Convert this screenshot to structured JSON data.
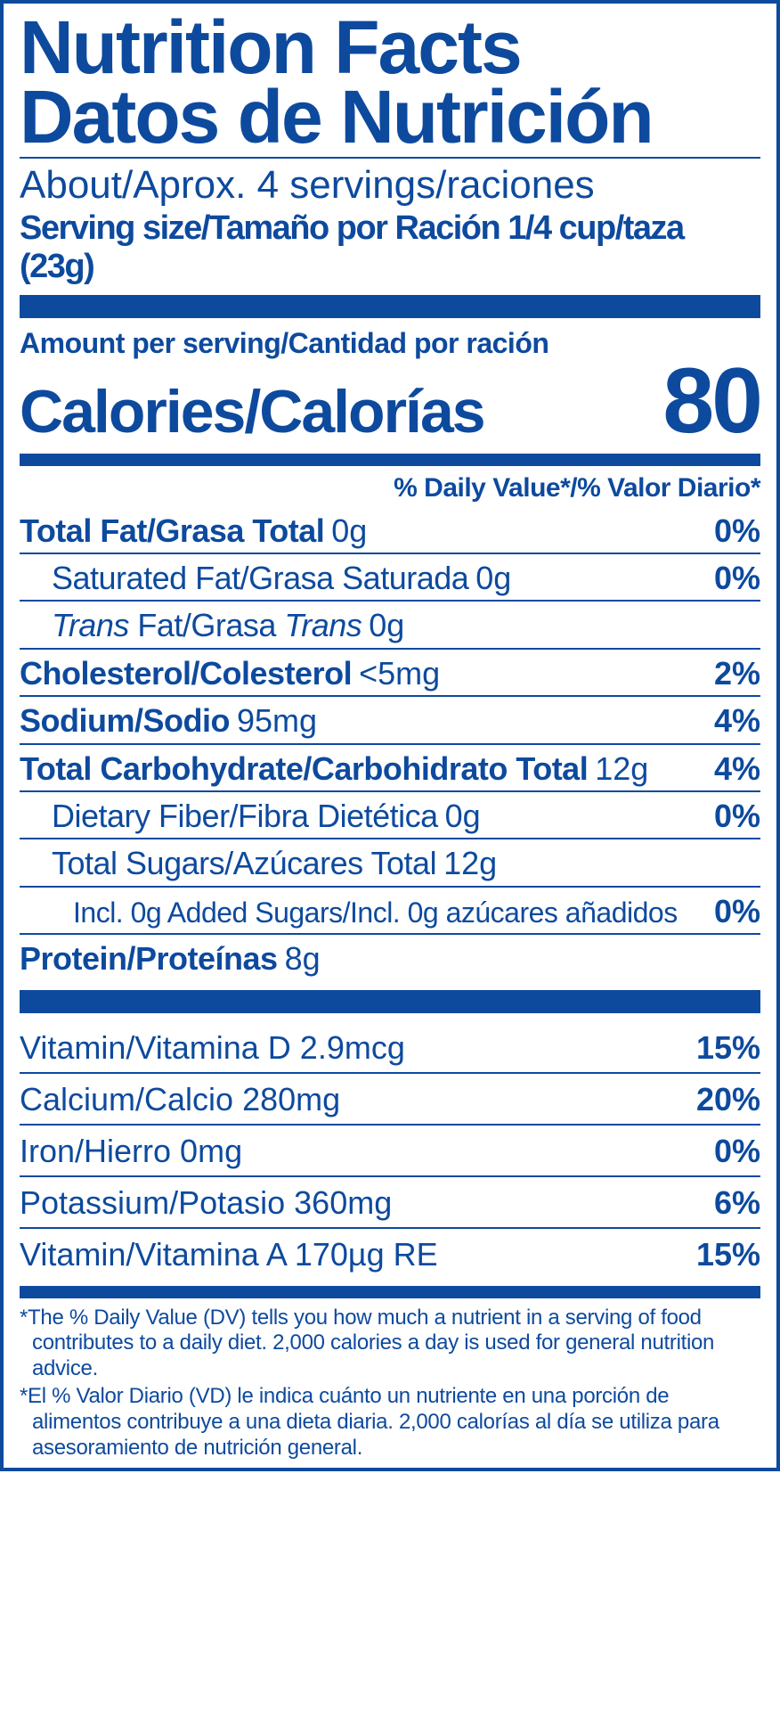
{
  "colors": {
    "primary": "#0d4a9e",
    "background": "#ffffff"
  },
  "header": {
    "title_en": "Nutrition Facts",
    "title_es": "Datos de Nutrición",
    "servings": "About/Aprox. 4 servings/raciones",
    "serving_size": "Serving size/Tamaño por Ración 1/4 cup/taza (23g)"
  },
  "calories": {
    "amount_per_label": "Amount per serving/Cantidad por ración",
    "label": "Calories/Calorías",
    "value": "80"
  },
  "dv_header": "% Daily Value*/% Valor Diario*",
  "nutrients": [
    {
      "name": "Total Fat/Grasa Total",
      "amount": "0g",
      "dv": "0%",
      "bold": true,
      "indent": 0
    },
    {
      "name": "Saturated Fat/Grasa Saturada",
      "amount": "0g",
      "dv": "0%",
      "bold": false,
      "indent": 1
    },
    {
      "name_html": "<span class='ital'>Trans</span> Fat/Grasa <span class='ital'>Trans</span>",
      "amount": "0g",
      "dv": "",
      "bold": false,
      "indent": 1
    },
    {
      "name": "Cholesterol/Colesterol",
      "amount": "<5mg",
      "dv": "2%",
      "bold": true,
      "indent": 0
    },
    {
      "name": "Sodium/Sodio",
      "amount": "95mg",
      "dv": "4%",
      "bold": true,
      "indent": 0
    },
    {
      "name": "Total Carbohydrate/Carbohidrato Total",
      "amount": "12g",
      "dv": "4%",
      "bold": true,
      "indent": 0
    },
    {
      "name": "Dietary Fiber/Fibra Dietética",
      "amount": "0g",
      "dv": "0%",
      "bold": false,
      "indent": 1
    },
    {
      "name": "Total Sugars/Azúcares Total",
      "amount": "12g",
      "dv": "",
      "bold": false,
      "indent": 1
    },
    {
      "name": "Incl. 0g Added Sugars/Incl. 0g azúcares añadidos",
      "amount": "",
      "dv": "0%",
      "bold": false,
      "indent": 2
    },
    {
      "name": "Protein/Proteínas",
      "amount": "8g",
      "dv": "",
      "bold": true,
      "indent": 0
    }
  ],
  "vitamins": [
    {
      "name": "Vitamin/Vitamina D 2.9mcg",
      "dv": "15%"
    },
    {
      "name": "Calcium/Calcio 280mg",
      "dv": "20%"
    },
    {
      "name": "Iron/Hierro 0mg",
      "dv": "0%"
    },
    {
      "name": "Potassium/Potasio 360mg",
      "dv": "6%"
    },
    {
      "name": "Vitamin/Vitamina A 170µg RE",
      "dv": "15%"
    }
  ],
  "footnotes": [
    "*The % Daily Value (DV) tells you how much a nutrient in a serving of food contributes to a daily diet. 2,000 calories a day is used for general nutrition advice.",
    "*El % Valor Diario (VD) le indica cuánto un nutriente en una porción de alimentos contribuye a una dieta diaria. 2,000 calorías al día se utiliza para asesoramiento de nutrición general."
  ]
}
